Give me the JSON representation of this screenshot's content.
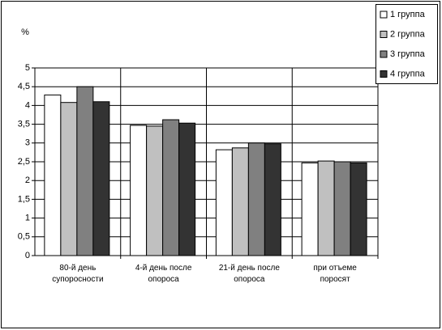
{
  "chart_data": {
    "type": "bar",
    "y_label": "%",
    "categories": [
      "80-й день супоросности",
      "4-й день после опороса",
      "21-й день после опороса",
      "при отъеме поросят"
    ],
    "series": [
      {
        "name": "1 группа",
        "color": "#ffffff",
        "values": [
          4.28,
          3.47,
          2.82,
          2.47
        ]
      },
      {
        "name": "2 группа",
        "color": "#c0c0c0",
        "values": [
          4.08,
          3.45,
          2.87,
          2.52
        ]
      },
      {
        "name": "3 группа",
        "color": "#808080",
        "values": [
          4.5,
          3.62,
          3.0,
          2.5
        ]
      },
      {
        "name": "4 группа",
        "color": "#333333",
        "values": [
          4.1,
          3.53,
          2.98,
          2.47
        ]
      }
    ],
    "ylim": [
      0,
      5
    ],
    "yticks": [
      0,
      {
        "value": 0.5,
        "label": "0,5"
      },
      1,
      {
        "value": 1.5,
        "label": "1,5"
      },
      2,
      {
        "value": 2.5,
        "label": "2,5"
      },
      3,
      {
        "value": 3.5,
        "label": "3,5"
      },
      4,
      {
        "value": 4.5,
        "label": "4,5"
      },
      5
    ],
    "grid": true,
    "legend": "top-right"
  }
}
